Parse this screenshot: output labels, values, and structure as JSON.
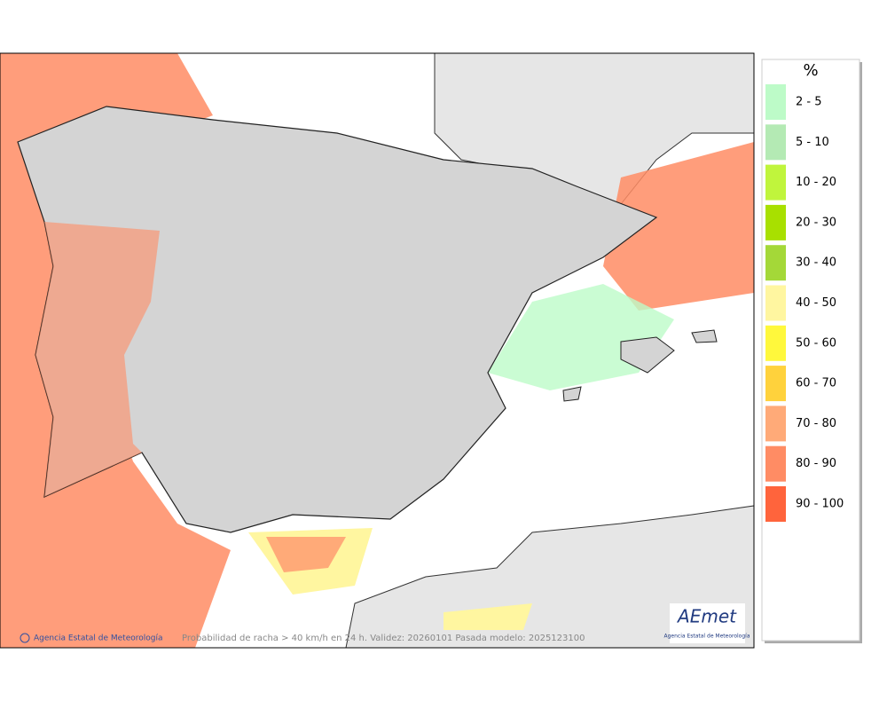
{
  "legend": {
    "title": "%",
    "items": [
      {
        "label": "2 - 5",
        "color": "#bdfbc8"
      },
      {
        "label": "5 - 10",
        "color": "#b4eab4"
      },
      {
        "label": "10 - 20",
        "color": "#c0f53c"
      },
      {
        "label": "20 - 30",
        "color": "#a8e000"
      },
      {
        "label": "30 - 40",
        "color": "#a4d838"
      },
      {
        "label": "40 - 50",
        "color": "#fff6a0"
      },
      {
        "label": "50 - 60",
        "color": "#fff83c"
      },
      {
        "label": "60 - 70",
        "color": "#ffd23c"
      },
      {
        "label": "70 - 80",
        "color": "#ffaa78"
      },
      {
        "label": "80 - 90",
        "color": "#ff8c64"
      },
      {
        "label": "90 - 100",
        "color": "#ff643c"
      }
    ]
  },
  "footer": {
    "agency": "Agencia Estatal de Meteorología",
    "caption": "Probabilidad de racha > 40 km/h en 24 h. Validez: 20260101 Pasada modelo: 2025123100"
  },
  "logo": {
    "name": "AEmet",
    "subtitle": "Agencia Estatal de Meteorología"
  }
}
